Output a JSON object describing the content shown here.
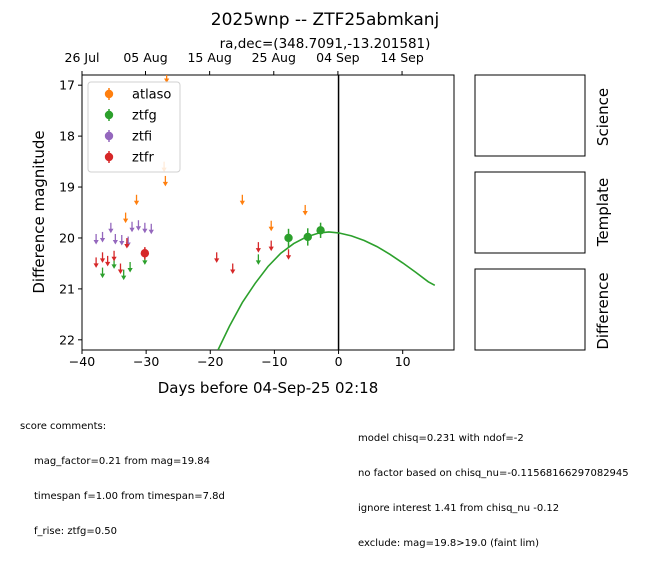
{
  "title": "2025wnp -- ZTF25abmkanj",
  "subtitle": "ra,dec=(348.7091,-13.201581)",
  "colors": {
    "atlaso": "#ff7f0e",
    "ztfg": "#2ca02c",
    "ztfi": "#9467bd",
    "ztfr": "#d62728",
    "fit": "#2ca02c",
    "peak_line": "#000000"
  },
  "chart_data": {
    "type": "scatter",
    "xlabel": "Days before 04-Sep-25 02:18",
    "ylabel": "Difference magnitude",
    "xlim": [
      -40,
      18
    ],
    "ylim": [
      22.2,
      16.8
    ],
    "y_inverted": true,
    "x_ticks": [
      -40,
      -30,
      -20,
      -10,
      0,
      10
    ],
    "y_ticks": [
      17,
      18,
      19,
      20,
      21,
      22
    ],
    "top_axis_ticks": [
      {
        "label": "26 Jul",
        "x": -40.0
      },
      {
        "label": "05 Aug",
        "x": -30.1
      },
      {
        "label": "15 Aug",
        "x": -20.1
      },
      {
        "label": "25 Aug",
        "x": -10.1
      },
      {
        "label": "04 Sep",
        "x": -0.1
      },
      {
        "label": "14 Sep",
        "x": 9.9
      }
    ],
    "legend_position": "upper-left",
    "grid": false,
    "peak_line_x": 0,
    "series": [
      {
        "name": "atlaso",
        "detections": [],
        "limits": [
          {
            "x": -33.2,
            "y": 19.6
          },
          {
            "x": -31.5,
            "y": 19.25
          },
          {
            "x": -27.2,
            "y": 18.6
          },
          {
            "x": -27.0,
            "y": 18.88
          },
          {
            "x": -26.8,
            "y": 16.85
          },
          {
            "x": -15.0,
            "y": 19.25
          },
          {
            "x": -10.5,
            "y": 19.76
          },
          {
            "x": -5.2,
            "y": 19.45
          }
        ]
      },
      {
        "name": "ztfg",
        "detections": [
          {
            "x": -7.8,
            "y": 20.0,
            "err": 0.18
          },
          {
            "x": -4.8,
            "y": 19.98,
            "err": 0.17
          },
          {
            "x": -2.8,
            "y": 19.85,
            "err": 0.15
          }
        ],
        "limits": [
          {
            "x": -36.8,
            "y": 20.68
          },
          {
            "x": -35.0,
            "y": 20.5
          },
          {
            "x": -33.5,
            "y": 20.72
          },
          {
            "x": -32.5,
            "y": 20.57
          },
          {
            "x": -30.2,
            "y": 20.42
          },
          {
            "x": -12.5,
            "y": 20.42
          }
        ]
      },
      {
        "name": "ztfi",
        "detections": [],
        "limits": [
          {
            "x": -37.8,
            "y": 20.02
          },
          {
            "x": -36.8,
            "y": 19.98
          },
          {
            "x": -35.5,
            "y": 19.8
          },
          {
            "x": -34.8,
            "y": 20.02
          },
          {
            "x": -33.8,
            "y": 20.04
          },
          {
            "x": -32.8,
            "y": 20.07
          },
          {
            "x": -32.2,
            "y": 19.78
          },
          {
            "x": -31.2,
            "y": 19.75
          },
          {
            "x": -30.2,
            "y": 19.8
          },
          {
            "x": -29.2,
            "y": 19.82
          }
        ]
      },
      {
        "name": "ztfr",
        "detections": [
          {
            "x": -30.2,
            "y": 20.3,
            "err": 0.12
          }
        ],
        "limits": [
          {
            "x": -37.8,
            "y": 20.48
          },
          {
            "x": -36.8,
            "y": 20.38
          },
          {
            "x": -36.0,
            "y": 20.45
          },
          {
            "x": -35.0,
            "y": 20.35
          },
          {
            "x": -34.0,
            "y": 20.6
          },
          {
            "x": -33.0,
            "y": 20.1
          },
          {
            "x": -19.0,
            "y": 20.38
          },
          {
            "x": -16.5,
            "y": 20.6
          },
          {
            "x": -12.5,
            "y": 20.18
          },
          {
            "x": -10.5,
            "y": 20.15
          },
          {
            "x": -7.8,
            "y": 20.32
          }
        ]
      }
    ],
    "fit_curve": {
      "series": "ztfg",
      "points": [
        {
          "x": -18.8,
          "y": 22.2
        },
        {
          "x": -17.0,
          "y": 21.73
        },
        {
          "x": -15.0,
          "y": 21.27
        },
        {
          "x": -13.0,
          "y": 20.89
        },
        {
          "x": -11.0,
          "y": 20.56
        },
        {
          "x": -9.0,
          "y": 20.3
        },
        {
          "x": -7.0,
          "y": 20.11
        },
        {
          "x": -5.0,
          "y": 19.98
        },
        {
          "x": -3.0,
          "y": 19.9
        },
        {
          "x": -1.5,
          "y": 19.88
        },
        {
          "x": 0.0,
          "y": 19.9
        },
        {
          "x": 2.0,
          "y": 19.96
        },
        {
          "x": 4.0,
          "y": 20.05
        },
        {
          "x": 6.0,
          "y": 20.17
        },
        {
          "x": 8.0,
          "y": 20.32
        },
        {
          "x": 10.0,
          "y": 20.49
        },
        {
          "x": 12.0,
          "y": 20.67
        },
        {
          "x": 14.0,
          "y": 20.86
        },
        {
          "x": 15.0,
          "y": 20.93
        }
      ]
    }
  },
  "stamps": [
    {
      "label": "Science"
    },
    {
      "label": "Template"
    },
    {
      "label": "Difference"
    }
  ],
  "comments_left": {
    "heading": "score comments:",
    "lines": [
      "mag_factor=0.21 from mag=19.84",
      "timespan f=1.00 from timespan=7.8d",
      "f_rise: ztfg=0.50"
    ]
  },
  "comments_right": {
    "lines": [
      "model chisq=0.231 with ndof=-2",
      "no factor based on chisq_nu=-0.11568166297082945",
      "ignore interest 1.41 from chisq_nu -0.12",
      "exclude: mag=19.8>19.0 (faint lim)"
    ]
  }
}
